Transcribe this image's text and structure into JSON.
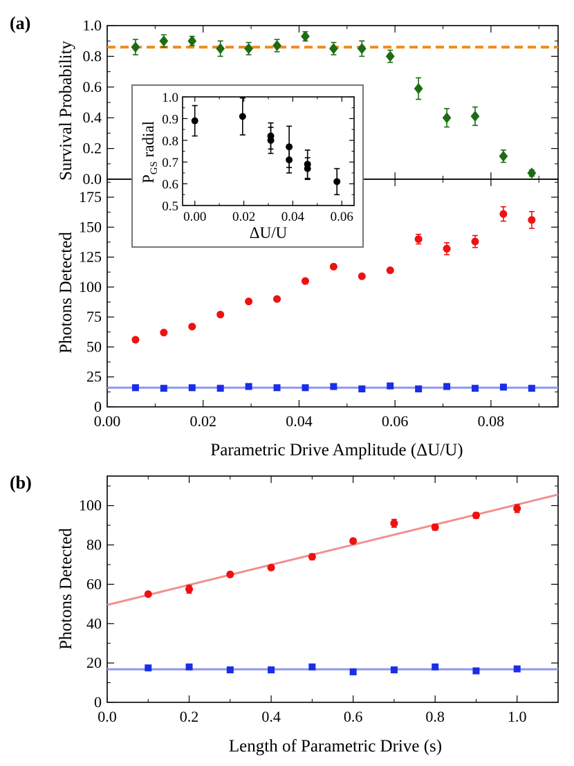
{
  "colors": {
    "survival": "#1e6b14",
    "red": "#ee1111",
    "blue": "#1a2ee8",
    "blue_line": "#8f97f0",
    "red_line": "#f29090",
    "orange": "#f08c1e",
    "inset_points": "#000000"
  },
  "chart_data": [
    {
      "id": "a-top",
      "panel_label": "(a)",
      "type": "scatter",
      "ylabel": "Survival Probability",
      "xlim": [
        0,
        0.094
      ],
      "ylim": [
        0,
        1.0
      ],
      "yticks": [
        "0.0",
        "0.2",
        "0.4",
        "0.6",
        "0.8",
        "1.0"
      ],
      "reference_line": 0.86,
      "series": [
        {
          "name": "survival",
          "marker": "diamond",
          "x": [
            0.0059,
            0.0118,
            0.0177,
            0.0236,
            0.0295,
            0.0354,
            0.0413,
            0.0472,
            0.0531,
            0.059,
            0.0649,
            0.0708,
            0.0767,
            0.0826,
            0.0885
          ],
          "y": [
            0.86,
            0.9,
            0.9,
            0.85,
            0.85,
            0.87,
            0.93,
            0.85,
            0.85,
            0.8,
            0.59,
            0.4,
            0.41,
            0.15,
            0.04
          ],
          "err": [
            0.05,
            0.04,
            0.03,
            0.05,
            0.04,
            0.04,
            0.03,
            0.04,
            0.05,
            0.04,
            0.07,
            0.06,
            0.06,
            0.04,
            0.02
          ]
        }
      ]
    },
    {
      "id": "a-bottom",
      "type": "scatter",
      "xlabel": "Parametric Drive Amplitude (ΔU/U)",
      "ylabel": "Photons Detected",
      "xlim": [
        0,
        0.094
      ],
      "ylim": [
        0,
        190
      ],
      "xticks": [
        "0.00",
        "0.02",
        "0.04",
        "0.06",
        "0.08"
      ],
      "yticks": [
        "0",
        "25",
        "50",
        "75",
        "100",
        "125",
        "150",
        "175"
      ],
      "fit_line_blue": 16,
      "series": [
        {
          "name": "red",
          "marker": "circle",
          "x": [
            0.0059,
            0.0118,
            0.0177,
            0.0236,
            0.0295,
            0.0354,
            0.0413,
            0.0472,
            0.0531,
            0.059,
            0.0649,
            0.0708,
            0.0767,
            0.0826,
            0.0885
          ],
          "y": [
            56,
            62,
            67,
            77,
            88,
            90,
            105,
            117,
            109,
            114,
            140,
            132,
            138,
            161,
            156
          ],
          "err": [
            0,
            0,
            0,
            0,
            0,
            0,
            0,
            0,
            0,
            0,
            4,
            5,
            5,
            6,
            7
          ]
        },
        {
          "name": "blue",
          "marker": "square",
          "x": [
            0.0059,
            0.0118,
            0.0177,
            0.0236,
            0.0295,
            0.0354,
            0.0413,
            0.0472,
            0.0531,
            0.059,
            0.0649,
            0.0708,
            0.0767,
            0.0826,
            0.0885
          ],
          "y": [
            16,
            15.5,
            16,
            15.5,
            17,
            16,
            16,
            17,
            15,
            17.5,
            15,
            17,
            15.5,
            16.5,
            15.5
          ],
          "err": [
            0,
            0,
            0,
            0,
            0,
            0,
            0,
            0,
            0,
            0,
            0,
            0,
            0,
            0,
            0
          ]
        }
      ]
    },
    {
      "id": "inset",
      "type": "scatter",
      "xlabel": "ΔU/U",
      "ylabel_main": "P",
      "ylabel_sub": "GS",
      "ylabel_rest": " radial",
      "xlim": [
        -0.005,
        0.065
      ],
      "ylim": [
        0.5,
        1.0
      ],
      "xticks": [
        "0.00",
        "0.02",
        "0.04",
        "0.06"
      ],
      "yticks": [
        "0.5",
        "0.6",
        "0.7",
        "0.8",
        "0.9",
        "1.0"
      ],
      "series": [
        {
          "name": "P_GS radial",
          "marker": "circle",
          "x": [
            0.0,
            0.0195,
            0.031,
            0.031,
            0.0385,
            0.0385,
            0.046,
            0.046,
            0.058
          ],
          "y": [
            0.89,
            0.91,
            0.82,
            0.8,
            0.77,
            0.71,
            0.69,
            0.67,
            0.61
          ],
          "err": [
            0.07,
            0.085,
            0.06,
            0.06,
            0.095,
            0.06,
            0.065,
            0.05,
            0.06
          ]
        }
      ]
    },
    {
      "id": "b",
      "panel_label": "(b)",
      "type": "scatter",
      "xlabel": "Length of Parametric Drive (s)",
      "ylabel": "Photons Detected",
      "xlim": [
        0,
        1.1
      ],
      "ylim": [
        0,
        115
      ],
      "xticks": [
        "0.0",
        "0.2",
        "0.4",
        "0.6",
        "0.8",
        "1.0"
      ],
      "yticks": [
        "0",
        "20",
        "40",
        "60",
        "80",
        "100"
      ],
      "fit_red": {
        "intercept": 49.5,
        "slope": 51
      },
      "fit_blue": 16.8,
      "series": [
        {
          "name": "red",
          "marker": "circle",
          "x": [
            0.1,
            0.2,
            0.3,
            0.4,
            0.5,
            0.6,
            0.7,
            0.8,
            0.9,
            1.0
          ],
          "y": [
            55,
            57.5,
            65,
            68.5,
            74,
            82,
            91,
            89,
            95,
            98.5
          ],
          "err": [
            0,
            2,
            0,
            0,
            1.5,
            0,
            2,
            1.5,
            1.5,
            2
          ]
        },
        {
          "name": "blue",
          "marker": "square",
          "x": [
            0.1,
            0.2,
            0.3,
            0.4,
            0.5,
            0.6,
            0.7,
            0.8,
            0.9,
            1.0
          ],
          "y": [
            17.5,
            18,
            16.5,
            16.5,
            18,
            15.5,
            16.5,
            18,
            16,
            17
          ],
          "err": [
            0,
            0,
            0,
            0,
            0,
            0,
            0,
            0,
            0,
            0
          ]
        }
      ]
    }
  ]
}
